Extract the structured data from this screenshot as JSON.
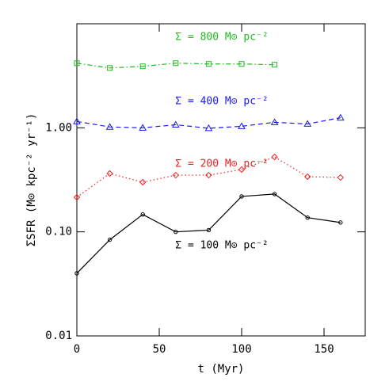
{
  "chart_data": {
    "type": "line",
    "x_label": "t (Myr)",
    "y_label": "ΣSFR (M⊙ kpc⁻² yr⁻¹)",
    "xlim": [
      0,
      175
    ],
    "xticks": [
      0,
      50,
      100,
      150
    ],
    "ylim": [
      0.01,
      10
    ],
    "yticks": [
      0.01,
      {
        "value": 0.1,
        "label": "0.10"
      },
      {
        "value": 1,
        "label": "1.00"
      }
    ],
    "log_y": true,
    "series": [
      {
        "name": "Σ = 800 M⊙ pc⁻²",
        "color": "#22bb22",
        "marker": "square",
        "dash": "dashdot",
        "x": [
          0,
          20,
          40,
          60,
          80,
          100,
          120
        ],
        "values": [
          4.18,
          3.76,
          3.9,
          4.18,
          4.11,
          4.11,
          4.04
        ]
      },
      {
        "name": "Σ = 400 M⊙ pc⁻²",
        "color": "#1a1aee",
        "marker": "triangle",
        "dash": "dashed",
        "x": [
          0,
          20,
          40,
          60,
          80,
          100,
          120,
          140,
          160
        ],
        "values": [
          1.15,
          1.02,
          1.0,
          1.07,
          0.99,
          1.035,
          1.13,
          1.09,
          1.25
        ]
      },
      {
        "name": "Σ = 200 M⊙ pc⁻²",
        "color": "#ee2222",
        "marker": "diamond",
        "dash": "dotted",
        "x": [
          0,
          20,
          40,
          60,
          80,
          100,
          120,
          140,
          160
        ],
        "values": [
          0.215,
          0.364,
          0.3,
          0.351,
          0.351,
          0.397,
          0.525,
          0.339,
          0.333
        ]
      },
      {
        "name": "Σ = 100 M⊙ pc⁻²",
        "color": "#000000",
        "marker": "circle",
        "dash": "solid",
        "x": [
          0,
          20,
          40,
          60,
          80,
          100,
          120,
          140,
          160
        ],
        "values": [
          0.04,
          0.084,
          0.147,
          0.1,
          0.104,
          0.219,
          0.231,
          0.137,
          0.123
        ]
      }
    ]
  }
}
